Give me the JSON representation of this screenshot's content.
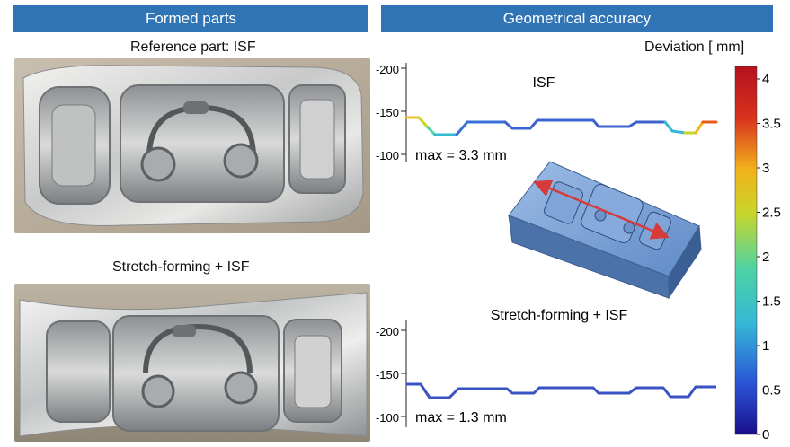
{
  "header_left": "Formed parts",
  "header_right": "Geometrical accuracy",
  "reference_label": "Reference part: ISF",
  "stretch_label": "Stretch-forming + ISF",
  "plot_top": {
    "title": "ISF",
    "max_text": "max = 3.3 mm",
    "y_ticks": [
      "-200",
      "-150",
      "-100"
    ]
  },
  "plot_bottom": {
    "title": "Stretch-forming + ISF",
    "max_text": "max = 1.3 mm",
    "y_ticks": [
      "-200",
      "-150",
      "-100"
    ]
  },
  "colorbar": {
    "title": "Deviation [ mm]",
    "ticks": [
      "4",
      "3.5",
      "3",
      "2.5",
      "2",
      "1.5",
      "1",
      "0.5",
      "0"
    ],
    "range": [
      0,
      4
    ],
    "colors": [
      "#1a0f8c",
      "#2a55d6",
      "#35b7d6",
      "#4ed3a4",
      "#c8d62b",
      "#f2b21b",
      "#d8321e",
      "#b3121e"
    ]
  },
  "colors": {
    "header_bg": "#2f74b5",
    "arrow": "#d73a3a",
    "model": "#6f9ad1"
  }
}
